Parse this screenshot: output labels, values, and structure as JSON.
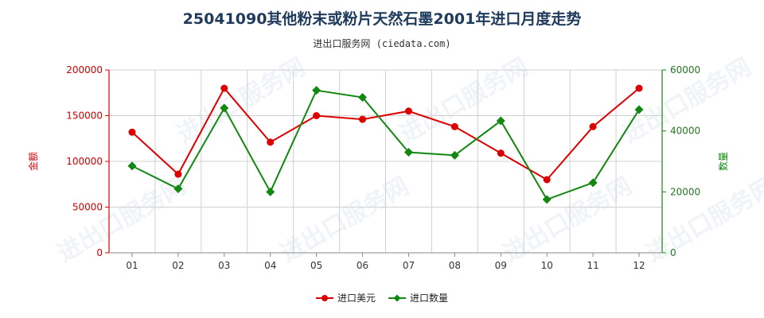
{
  "chart_data": {
    "type": "line",
    "title": "25041090其他粉末或粉片天然石墨2001年进口月度走势",
    "subtitle": "进出口服务网 (ciedata.com)",
    "categories": [
      "01",
      "02",
      "03",
      "04",
      "05",
      "06",
      "07",
      "08",
      "09",
      "10",
      "11",
      "12"
    ],
    "y_left": {
      "label": "金额",
      "ticks": [
        "0",
        "50000",
        "100000",
        "150000",
        "200000"
      ],
      "range": [
        0,
        200000
      ],
      "color": "#dd0000"
    },
    "y_right": {
      "label": "数量",
      "ticks": [
        "0",
        "20000",
        "40000",
        "60000"
      ],
      "range": [
        0,
        60000
      ],
      "color": "#118811"
    },
    "grid": true,
    "legend_position": "bottom",
    "series": [
      {
        "name": "进口美元",
        "axis": "left",
        "color": "#dd0000",
        "values": [
          132000,
          86000,
          180000,
          121000,
          150000,
          146000,
          155000,
          138000,
          109000,
          80000,
          138000,
          180000
        ]
      },
      {
        "name": "进口数量",
        "axis": "right",
        "color": "#118811",
        "values": [
          28500,
          21000,
          47500,
          20000,
          53300,
          51000,
          33000,
          32000,
          43300,
          17500,
          23000,
          47000
        ]
      }
    ],
    "watermark": "进出口服务网"
  }
}
